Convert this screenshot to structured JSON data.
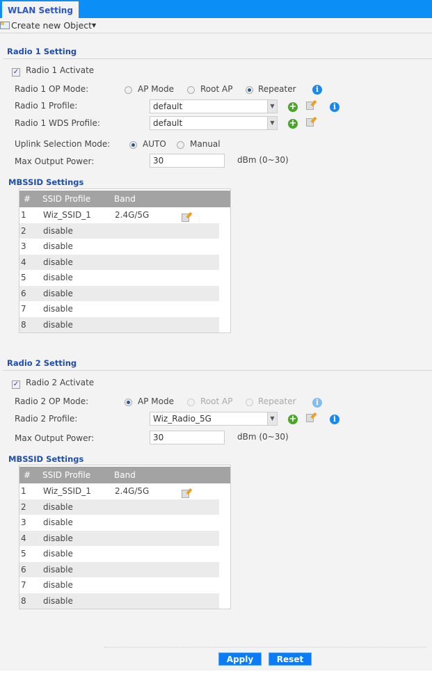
{
  "header": {
    "tab": "WLAN Setting"
  },
  "toolbar": {
    "create_label": "Create new Object"
  },
  "radio1": {
    "title": "Radio 1 Setting",
    "activate_label": "Radio 1 Activate",
    "activate_checked": true,
    "op_mode_label": "Radio 1 OP Mode:",
    "op_modes": [
      "AP Mode",
      "Root AP",
      "Repeater"
    ],
    "op_mode_selected": "Repeater",
    "profile_label": "Radio 1 Profile:",
    "profile_value": "default",
    "wds_label": "Radio 1 WDS Profile:",
    "wds_value": "default",
    "uplink_label": "Uplink Selection Mode:",
    "uplink_modes": [
      "AUTO",
      "Manual"
    ],
    "uplink_selected": "AUTO",
    "power_label": "Max Output Power:",
    "power_value": "30",
    "power_unit": "dBm (0~30)",
    "mbssid_title": "MBSSID Settings",
    "columns": [
      "#",
      "SSID Profile",
      "Band"
    ],
    "rows": [
      [
        "1",
        "Wiz_SSID_1",
        "2.4G/5G"
      ],
      [
        "2",
        "disable",
        ""
      ],
      [
        "3",
        "disable",
        ""
      ],
      [
        "4",
        "disable",
        ""
      ],
      [
        "5",
        "disable",
        ""
      ],
      [
        "6",
        "disable",
        ""
      ],
      [
        "7",
        "disable",
        ""
      ],
      [
        "8",
        "disable",
        ""
      ]
    ]
  },
  "radio2": {
    "title": "Radio 2 Setting",
    "activate_label": "Radio 2 Activate",
    "activate_checked": true,
    "op_mode_label": "Radio 2 OP Mode:",
    "op_modes": [
      "AP Mode",
      "Root AP",
      "Repeater"
    ],
    "op_mode_selected": "AP Mode",
    "profile_label": "Radio 2 Profile:",
    "profile_value": "Wiz_Radio_5G",
    "power_label": "Max Output Power:",
    "power_value": "30",
    "power_unit": "dBm (0~30)",
    "mbssid_title": "MBSSID Settings",
    "columns": [
      "#",
      "SSID Profile",
      "Band"
    ],
    "rows": [
      [
        "1",
        "Wiz_SSID_1",
        "2.4G/5G"
      ],
      [
        "2",
        "disable",
        ""
      ],
      [
        "3",
        "disable",
        ""
      ],
      [
        "4",
        "disable",
        ""
      ],
      [
        "5",
        "disable",
        ""
      ],
      [
        "6",
        "disable",
        ""
      ],
      [
        "7",
        "disable",
        ""
      ],
      [
        "8",
        "disable",
        ""
      ]
    ]
  },
  "footer": {
    "apply": "Apply",
    "reset": "Reset"
  },
  "colors": {
    "accent": "#0b8ef5",
    "button": "#0b7cf5",
    "section_title": "#1f4ea8",
    "add": "#4aa52a"
  }
}
